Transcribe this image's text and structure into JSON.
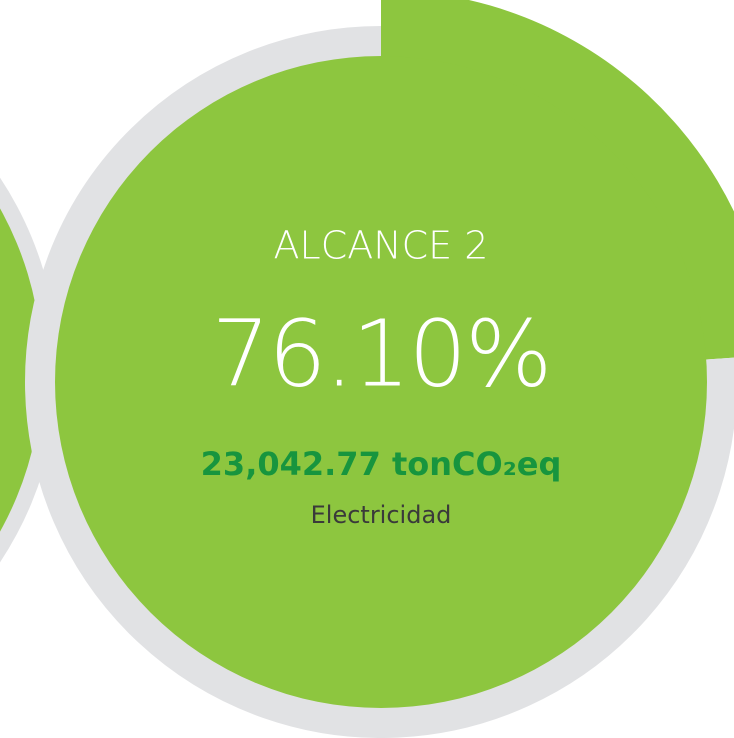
{
  "chart_data": {
    "type": "pie",
    "title": "ALCANCE 2",
    "values": [
      76.1
    ],
    "value_labels": [
      "76.10%"
    ],
    "amount": "23,042.77 tonCO₂eq",
    "subtitle": "Electricidad",
    "colors": {
      "ring": "#e1e2e4",
      "fill": "#8dc63f",
      "amount": "#17953e"
    }
  }
}
